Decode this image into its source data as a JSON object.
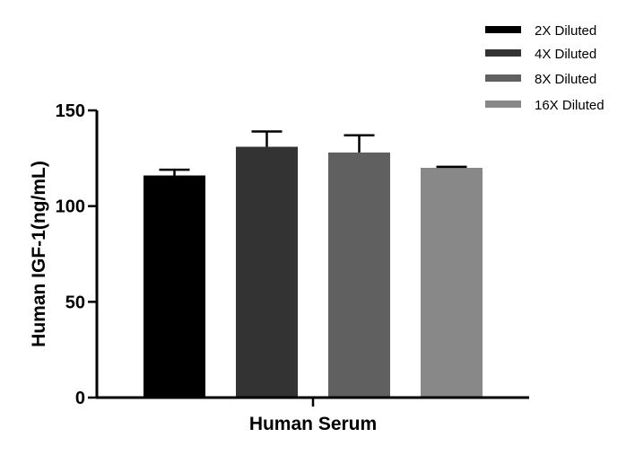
{
  "chart_data": {
    "type": "bar",
    "title": "",
    "xlabel": "Human Serum",
    "ylabel": "Human IGF-1(ng/mL)",
    "ylim": [
      0,
      150
    ],
    "yticks": [
      "0",
      "50",
      "100",
      "150"
    ],
    "grid": false,
    "legend_position": "top-right",
    "series": [
      {
        "name": "2X Diluted",
        "value": 116,
        "error": 3,
        "color": "#000000"
      },
      {
        "name": "4X Diluted",
        "value": 131,
        "error": 8,
        "color": "#333333"
      },
      {
        "name": "8X Diluted",
        "value": 128,
        "error": 9,
        "color": "#606060"
      },
      {
        "name": "16X Diluted",
        "value": 120,
        "error": 0.5,
        "color": "#888888"
      }
    ]
  }
}
